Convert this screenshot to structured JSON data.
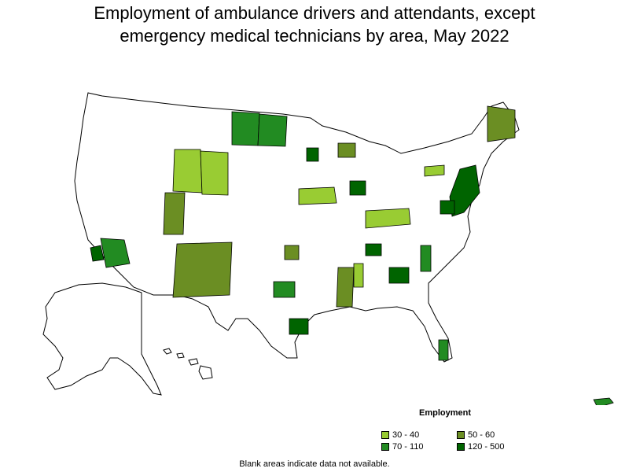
{
  "title_line1": "Employment of ambulance drivers and attendants, except",
  "title_line2": "emergency medical technicians by area, May 2022",
  "legend": {
    "title": "Employment",
    "items": [
      {
        "label": "30 - 40",
        "color": "#99cc33"
      },
      {
        "label": "50 - 60",
        "color": "#6b8e23"
      },
      {
        "label": "70 - 110",
        "color": "#228b22"
      },
      {
        "label": "120 - 500",
        "color": "#006400"
      }
    ]
  },
  "footnote": "Blank areas indicate data not available."
}
